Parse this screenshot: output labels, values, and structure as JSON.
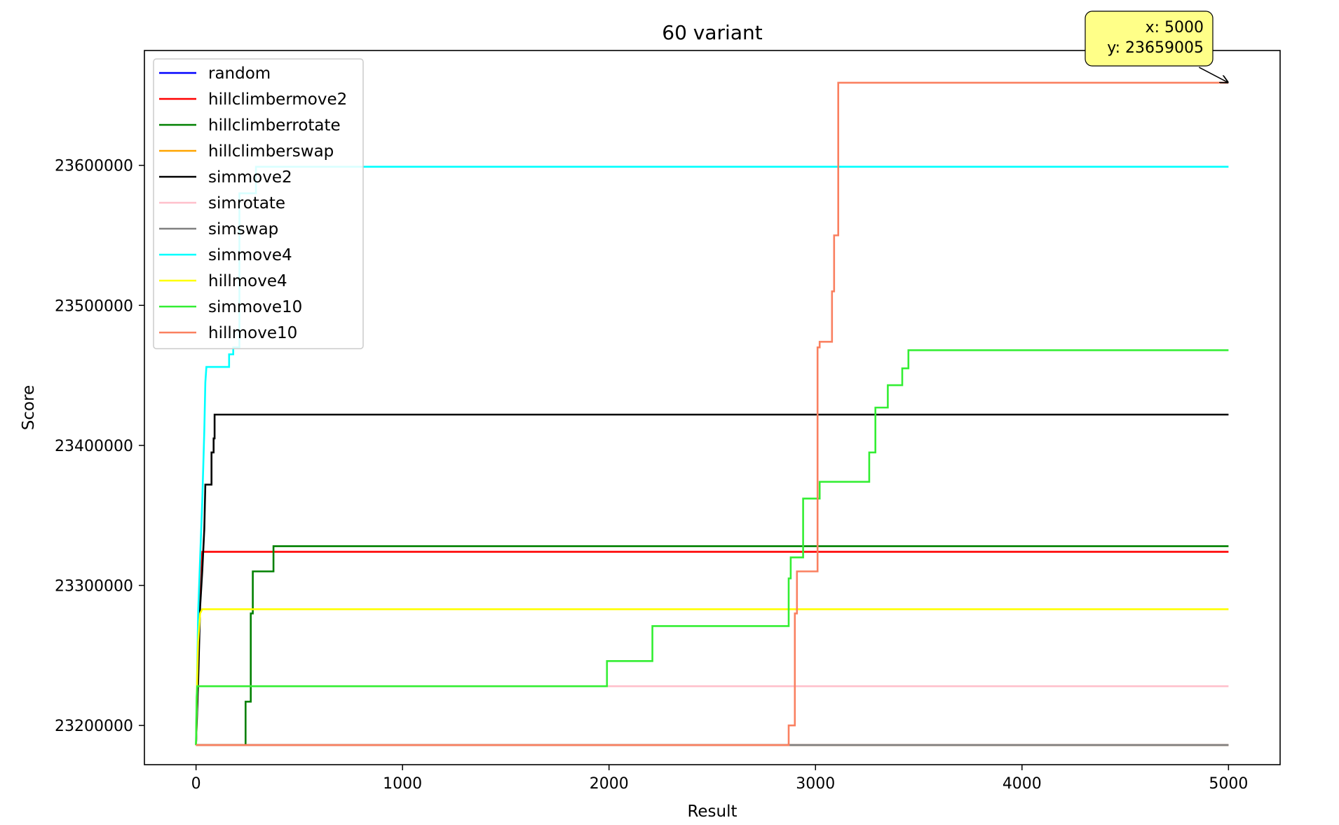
{
  "chart_data": {
    "type": "line",
    "title": "60 variant",
    "xlabel": "Result",
    "ylabel": "Score",
    "xlim": [
      -250,
      5250
    ],
    "ylim": [
      23172000,
      23682000
    ],
    "xticks": [
      0,
      1000,
      2000,
      3000,
      4000,
      5000
    ],
    "yticks": [
      23200000,
      23300000,
      23400000,
      23500000,
      23600000
    ],
    "legend_position": "upper left",
    "grid": false,
    "annotation": {
      "x": 5000,
      "y": 23659005,
      "line1": "x: 5000",
      "line2": "y: 23659005",
      "box_color": "#ffff88"
    },
    "series": [
      {
        "name": "random",
        "color": "#0000ff",
        "points": [
          [
            0,
            23186000
          ],
          [
            5000,
            23186000
          ]
        ]
      },
      {
        "name": "hillclimbermove2",
        "color": "#ff0000",
        "points": [
          [
            0,
            23186000
          ],
          [
            5,
            23210000
          ],
          [
            10,
            23240000
          ],
          [
            15,
            23270000
          ],
          [
            20,
            23290000
          ],
          [
            25,
            23310000
          ],
          [
            30,
            23324000
          ],
          [
            5000,
            23324000
          ]
        ]
      },
      {
        "name": "hillclimberrotate",
        "color": "#008000",
        "points": [
          [
            0,
            23186000
          ],
          [
            240,
            23186000
          ],
          [
            240,
            23217000
          ],
          [
            265,
            23217000
          ],
          [
            265,
            23280000
          ],
          [
            275,
            23280000
          ],
          [
            275,
            23310000
          ],
          [
            375,
            23310000
          ],
          [
            375,
            23328000
          ],
          [
            5000,
            23328000
          ]
        ]
      },
      {
        "name": "hillclimberswap",
        "color": "#ffa500",
        "points": [
          [
            0,
            23186000
          ],
          [
            5000,
            23186000
          ]
        ]
      },
      {
        "name": "simmove2",
        "color": "#000000",
        "points": [
          [
            0,
            23186000
          ],
          [
            10,
            23230000
          ],
          [
            20,
            23285000
          ],
          [
            30,
            23310000
          ],
          [
            40,
            23340000
          ],
          [
            45,
            23372000
          ],
          [
            75,
            23372000
          ],
          [
            75,
            23395000
          ],
          [
            85,
            23395000
          ],
          [
            85,
            23405000
          ],
          [
            90,
            23405000
          ],
          [
            90,
            23422000
          ],
          [
            5000,
            23422000
          ]
        ]
      },
      {
        "name": "simrotate",
        "color": "#ffc0cb",
        "points": [
          [
            0,
            23186000
          ],
          [
            5,
            23228000
          ],
          [
            5000,
            23228000
          ]
        ]
      },
      {
        "name": "simswap",
        "color": "#808080",
        "points": [
          [
            0,
            23186000
          ],
          [
            5000,
            23186000
          ]
        ]
      },
      {
        "name": "simmove4",
        "color": "#00ffff",
        "points": [
          [
            0,
            23186000
          ],
          [
            10,
            23280000
          ],
          [
            20,
            23320000
          ],
          [
            30,
            23360000
          ],
          [
            40,
            23410000
          ],
          [
            45,
            23445000
          ],
          [
            50,
            23456000
          ],
          [
            160,
            23456000
          ],
          [
            160,
            23465000
          ],
          [
            180,
            23465000
          ],
          [
            180,
            23470000
          ],
          [
            210,
            23470000
          ],
          [
            210,
            23580000
          ],
          [
            290,
            23580000
          ],
          [
            290,
            23599000
          ],
          [
            5000,
            23599000
          ]
        ]
      },
      {
        "name": "hillmove4",
        "color": "#ffff00",
        "points": [
          [
            0,
            23186000
          ],
          [
            5,
            23230000
          ],
          [
            10,
            23260000
          ],
          [
            20,
            23280000
          ],
          [
            30,
            23283000
          ],
          [
            5000,
            23283000
          ]
        ]
      },
      {
        "name": "simmove10",
        "color": "#33ee33",
        "points": [
          [
            0,
            23186000
          ],
          [
            3,
            23220000
          ],
          [
            6,
            23228000
          ],
          [
            1990,
            23228000
          ],
          [
            1990,
            23246000
          ],
          [
            2210,
            23246000
          ],
          [
            2210,
            23271000
          ],
          [
            2870,
            23271000
          ],
          [
            2870,
            23305000
          ],
          [
            2880,
            23305000
          ],
          [
            2880,
            23320000
          ],
          [
            2940,
            23320000
          ],
          [
            2940,
            23362000
          ],
          [
            3020,
            23362000
          ],
          [
            3020,
            23374000
          ],
          [
            3260,
            23374000
          ],
          [
            3260,
            23395000
          ],
          [
            3290,
            23395000
          ],
          [
            3290,
            23427000
          ],
          [
            3350,
            23427000
          ],
          [
            3350,
            23443000
          ],
          [
            3420,
            23443000
          ],
          [
            3420,
            23455000
          ],
          [
            3450,
            23455000
          ],
          [
            3450,
            23468000
          ],
          [
            5000,
            23468000
          ]
        ]
      },
      {
        "name": "hillmove10",
        "color": "#fa8060",
        "points": [
          [
            0,
            23186000
          ],
          [
            2870,
            23186000
          ],
          [
            2870,
            23200000
          ],
          [
            2900,
            23200000
          ],
          [
            2900,
            23280000
          ],
          [
            2910,
            23280000
          ],
          [
            2910,
            23310000
          ],
          [
            3010,
            23310000
          ],
          [
            3010,
            23470000
          ],
          [
            3020,
            23470000
          ],
          [
            3020,
            23474000
          ],
          [
            3080,
            23474000
          ],
          [
            3080,
            23510000
          ],
          [
            3090,
            23510000
          ],
          [
            3090,
            23550000
          ],
          [
            3110,
            23550000
          ],
          [
            3110,
            23659005
          ],
          [
            5000,
            23659005
          ]
        ]
      }
    ]
  }
}
